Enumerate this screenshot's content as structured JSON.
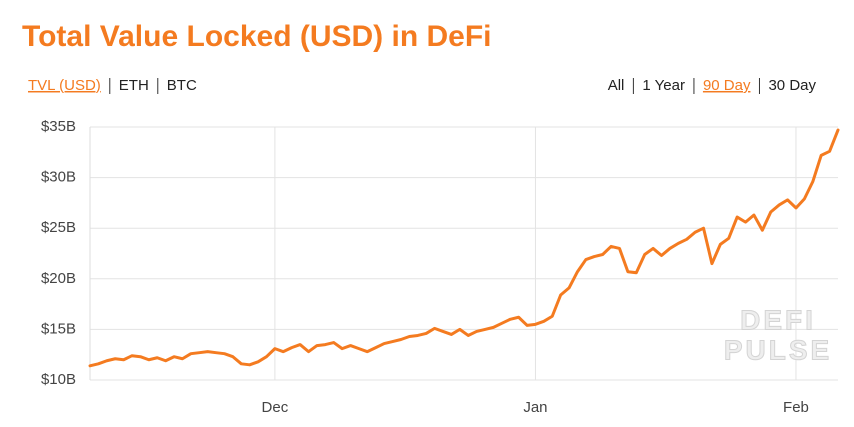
{
  "chart_data": {
    "type": "line",
    "title": "Total Value Locked (USD) in DeFi",
    "controls": {
      "left": [
        "TVL (USD)",
        "ETH",
        "BTC"
      ],
      "left_active": 0,
      "right": [
        "All",
        "1 Year",
        "90 Day",
        "30 Day"
      ],
      "right_active": 2
    },
    "watermark": [
      "DEFI",
      "PULSE"
    ],
    "categories": [
      null,
      null,
      null,
      null,
      null,
      null,
      null,
      null,
      null,
      null,
      null,
      null,
      null,
      null,
      null,
      null,
      null,
      null,
      null,
      null,
      null,
      null,
      "Dec",
      null,
      null,
      null,
      null,
      null,
      null,
      null,
      null,
      null,
      null,
      null,
      null,
      null,
      null,
      null,
      null,
      null,
      null,
      null,
      null,
      null,
      null,
      null,
      null,
      null,
      null,
      null,
      null,
      null,
      null,
      "Jan",
      null,
      null,
      null,
      null,
      null,
      null,
      null,
      null,
      null,
      null,
      null,
      null,
      null,
      null,
      null,
      null,
      null,
      null,
      null,
      null,
      null,
      null,
      null,
      null,
      null,
      null,
      null,
      null,
      null,
      null,
      "Feb",
      null,
      null,
      null,
      null,
      null
    ],
    "series": [
      {
        "name": "TVL (USD)",
        "color": "#f47b20",
        "values": [
          11.4,
          11.6,
          11.9,
          12.1,
          12.0,
          12.4,
          12.3,
          12.0,
          12.2,
          11.9,
          12.3,
          12.1,
          12.6,
          12.7,
          12.8,
          12.7,
          12.6,
          12.3,
          11.6,
          11.5,
          11.8,
          12.3,
          13.1,
          12.8,
          13.2,
          13.5,
          12.8,
          13.4,
          13.5,
          13.7,
          13.1,
          13.4,
          13.1,
          12.8,
          13.2,
          13.6,
          13.8,
          14.0,
          14.3,
          14.4,
          14.6,
          15.1,
          14.8,
          14.5,
          15.0,
          14.4,
          14.8,
          15.0,
          15.2,
          15.6,
          16.0,
          16.2,
          15.4,
          15.5,
          15.8,
          16.3,
          18.4,
          19.1,
          20.7,
          21.9,
          22.2,
          22.4,
          23.2,
          23.0,
          20.7,
          20.6,
          22.4,
          23.0,
          22.3,
          23.0,
          23.5,
          23.9,
          24.6,
          25.0,
          21.5,
          23.4,
          24.0,
          26.1,
          25.6,
          26.3,
          24.8,
          26.6,
          27.3,
          27.8,
          27.0,
          27.9,
          29.6,
          32.2,
          32.6,
          34.7
        ]
      }
    ],
    "ylim": [
      10,
      35
    ],
    "yticks": [
      {
        "value": 10,
        "label": "$10B"
      },
      {
        "value": 15,
        "label": "$15B"
      },
      {
        "value": 20,
        "label": "$20B"
      },
      {
        "value": 25,
        "label": "$25B"
      },
      {
        "value": 30,
        "label": "$30B"
      },
      {
        "value": 35,
        "label": "$35B"
      }
    ],
    "grid": true
  }
}
